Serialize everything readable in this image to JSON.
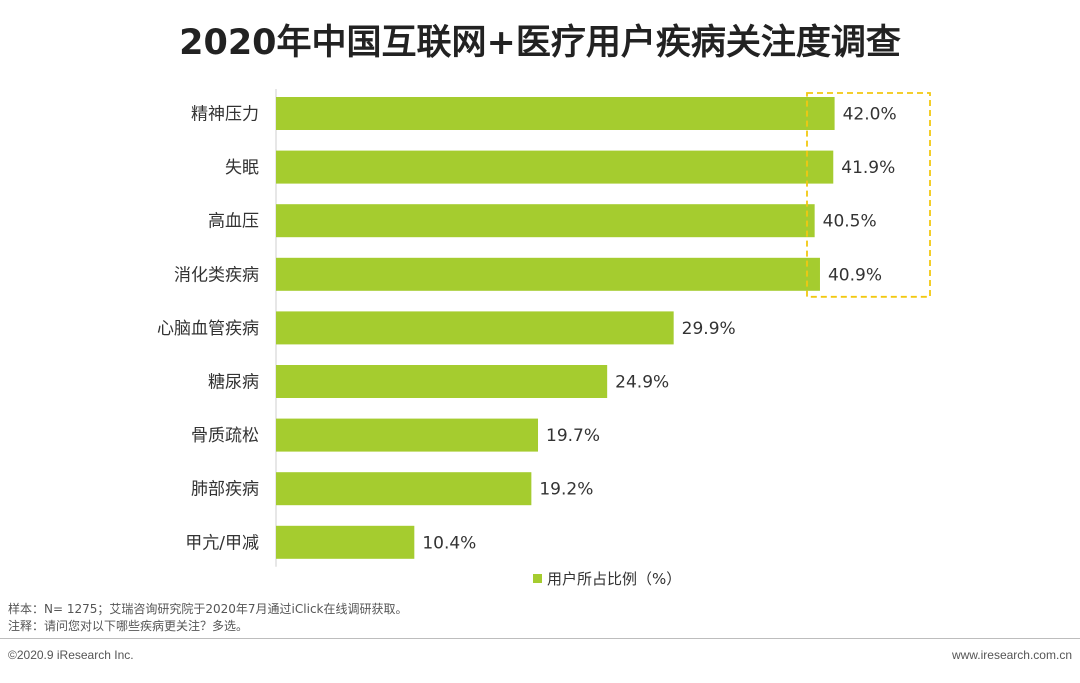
{
  "chart_data": {
    "type": "bar",
    "orientation": "horizontal",
    "title": "2020年中国互联网+医疗用户疾病关注度调查",
    "categories": [
      "精神压力",
      "失眠",
      "高血压",
      "消化类疾病",
      "心脑血管疾病",
      "糖尿病",
      "骨质疏松",
      "肺部疾病",
      "甲亢/甲减"
    ],
    "values": [
      42.0,
      41.9,
      40.5,
      40.9,
      29.9,
      24.9,
      19.7,
      19.2,
      10.4
    ],
    "value_labels": [
      "42.0%",
      "41.9%",
      "40.5%",
      "40.9%",
      "29.9%",
      "24.9%",
      "19.7%",
      "19.2%",
      "10.4%"
    ],
    "series_name": "用户所占比例（%）",
    "xlim": [
      0,
      50
    ],
    "highlight_categories": [
      "精神压力",
      "失眠",
      "高血压",
      "消化类疾病"
    ],
    "legend_position": "bottom-center",
    "grid": false
  },
  "colors": {
    "bar": "#a5cc2f",
    "highlight_box": "#f2c811",
    "axis": "#cfcfcf",
    "text": "#333333"
  },
  "notes": {
    "sample": "样本：N= 1275；艾瑞咨询研究院于2020年7月通过iClick在线调研获取。",
    "remark": "注释：请问您对以下哪些疾病更关注？多选。"
  },
  "footer": {
    "copyright": "©2020.9 iResearch Inc.",
    "website": "www.iresearch.com.cn"
  }
}
